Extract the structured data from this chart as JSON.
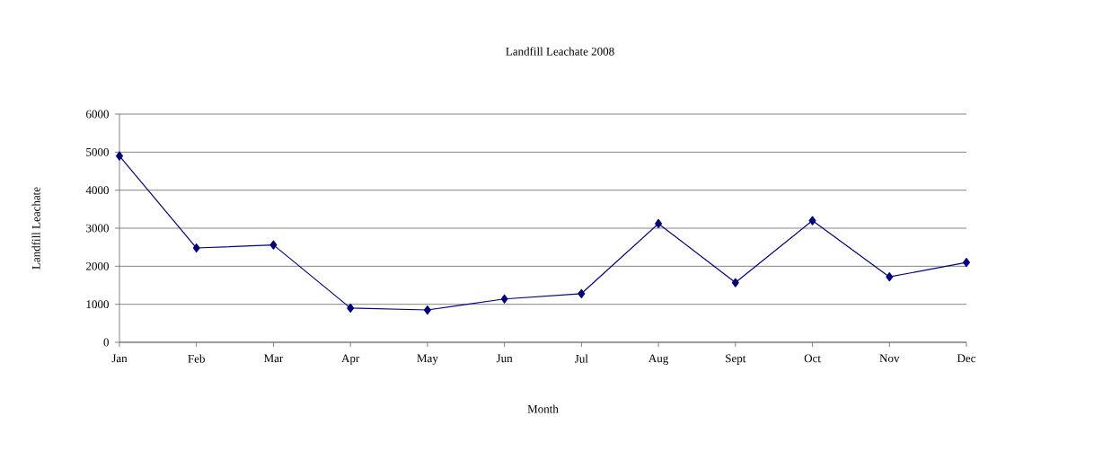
{
  "chart_data": {
    "type": "line",
    "title": "Landfill Leachate 2008",
    "xlabel": "Month",
    "ylabel": "Landfill Leachate",
    "categories": [
      "Jan",
      "Feb",
      "Mar",
      "Apr",
      "May",
      "Jun",
      "Jul",
      "Aug",
      "Sept",
      "Oct",
      "Nov",
      "Dec"
    ],
    "series": [
      {
        "color": "#000080",
        "values": [
          4900,
          2480,
          2560,
          900,
          850,
          1140,
          1280,
          3120,
          1570,
          3200,
          1720,
          2100
        ]
      }
    ],
    "ylim": [
      0,
      6000
    ],
    "yticks": [
      0,
      1000,
      2000,
      3000,
      4000,
      5000,
      6000
    ],
    "grid": "y",
    "legend": false,
    "marker": "diamond",
    "line_style": "solid"
  }
}
